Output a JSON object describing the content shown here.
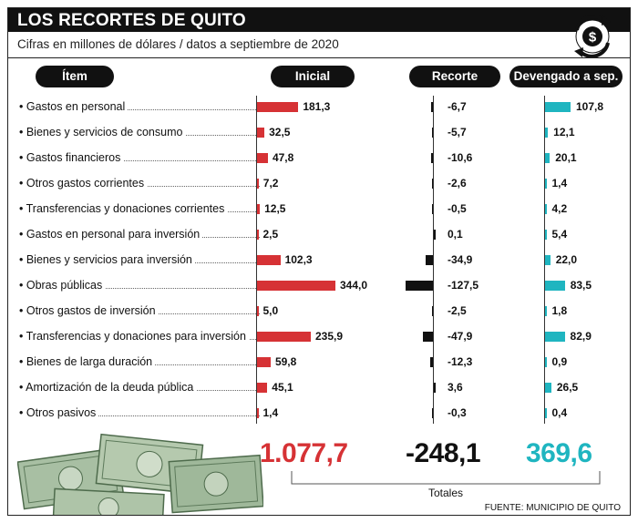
{
  "title": "LOS RECORTES DE QUITO",
  "subtitle": "Cifras en millones de dólares / datos a septiembre de 2020",
  "headers": {
    "item": "Ítem",
    "inicial": "Inicial",
    "recorte": "Recorte",
    "devengado": "Devengado a sep."
  },
  "totals": {
    "inicial": "1.077,7",
    "recorte": "-248,1",
    "devengado": "369,6",
    "label": "Totales"
  },
  "source": "FUENTE: MUNICIPIO DE QUITO",
  "colors": {
    "inicial": "#d63235",
    "recorte": "#111111",
    "devengado": "#1fb5c0"
  },
  "icons": {
    "logo": "dollar-cycle-icon",
    "decoration": "banknotes-illustration"
  },
  "chart_data": {
    "type": "bar",
    "title": "LOS RECORTES DE QUITO",
    "subtitle": "Cifras en millones de dólares / datos a septiembre de 2020",
    "categories": [
      "Gastos en personal",
      "Bienes y servicios de consumo",
      "Gastos financieros",
      "Otros gastos corrientes",
      "Transferencias y donaciones corrientes",
      "Gastos en personal para inversión",
      "Bienes y servicios para inversión",
      "Obras públicas",
      "Otros gastos de inversión",
      "Transferencias y donaciones para inversión",
      "Bienes de larga duración",
      "Amortización de la deuda pública",
      "Otros pasivos"
    ],
    "series": [
      {
        "name": "Inicial",
        "values": [
          181.3,
          32.5,
          47.8,
          7.2,
          12.5,
          2.5,
          102.3,
          344.0,
          5.0,
          235.9,
          59.8,
          45.1,
          1.4
        ],
        "labels": [
          "181,3",
          "32,5",
          "47,8",
          "7,2",
          "12,5",
          "2,5",
          "102,3",
          "344,0",
          "5,0",
          "235,9",
          "59,8",
          "45,1",
          "1,4"
        ]
      },
      {
        "name": "Recorte",
        "values": [
          -6.7,
          -5.7,
          -10.6,
          -2.6,
          -0.5,
          0.1,
          -34.9,
          -127.5,
          -2.5,
          -47.9,
          -12.3,
          3.6,
          -0.3
        ],
        "labels": [
          "-6,7",
          "-5,7",
          "-10,6",
          "-2,6",
          "-0,5",
          "0,1",
          "-34,9",
          "-127,5",
          "-2,5",
          "-47,9",
          "-12,3",
          "3,6",
          "-0,3"
        ]
      },
      {
        "name": "Devengado a sep.",
        "values": [
          107.8,
          12.1,
          20.1,
          1.4,
          4.2,
          5.4,
          22.0,
          83.5,
          1.8,
          82.9,
          0.9,
          26.5,
          0.4
        ],
        "labels": [
          "107,8",
          "12,1",
          "20,1",
          "1,4",
          "4,2",
          "5,4",
          "22,0",
          "83,5",
          "1,8",
          "82,9",
          "0,9",
          "26,5",
          "0,4"
        ]
      }
    ],
    "grid": false,
    "legend": "top"
  }
}
